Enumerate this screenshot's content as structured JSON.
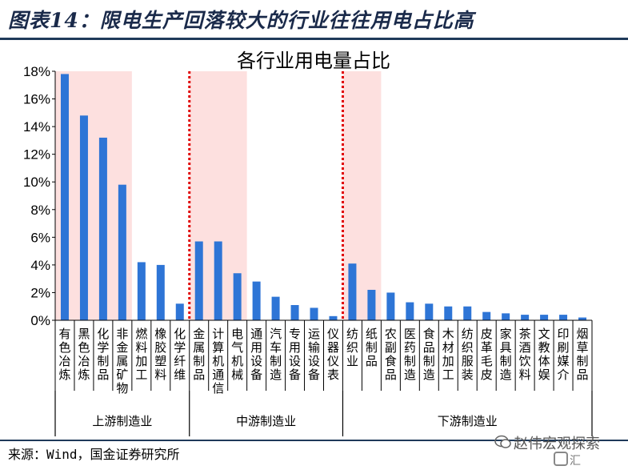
{
  "header": {
    "title": "图表14：限电生产回落较大的行业往往用电占比高"
  },
  "footer": {
    "source": "来源：Wind，国金证券研究所"
  },
  "watermark": {
    "line1": "赵伟宏观探索",
    "line2": "汇"
  },
  "colors": {
    "bar": "#2e75d6",
    "highlight": "#fde0df",
    "divider": "#e00000",
    "axis": "#000000"
  },
  "chart_data": {
    "type": "bar",
    "title": "各行业用电量占比",
    "ylim": [
      0,
      18
    ],
    "yticks": [
      "0%",
      "2%",
      "4%",
      "6%",
      "8%",
      "10%",
      "12%",
      "14%",
      "16%",
      "18%"
    ],
    "categories": [
      "有色冶炼",
      "黑色冶炼",
      "化学制品",
      "非金属矿物",
      "燃料加工",
      "橡胶塑料",
      "化学纤维",
      "金属制品",
      "计算机通信",
      "电气机械",
      "通用设备",
      "汽车制造",
      "专用设备",
      "运输设备",
      "仪器仪表",
      "纺织业",
      "纸制品",
      "农副食品",
      "医药制造",
      "食品制造",
      "木材加工",
      "纺织服装",
      "皮革毛皮",
      "家具制造",
      "茶酒饮料",
      "文教体娱",
      "印刷媒介",
      "烟草制品"
    ],
    "values": [
      17.8,
      14.8,
      13.2,
      9.8,
      4.2,
      4.0,
      1.2,
      5.7,
      5.7,
      3.4,
      2.8,
      1.7,
      1.1,
      0.9,
      0.3,
      4.1,
      2.2,
      2.0,
      1.3,
      1.2,
      1.0,
      1.0,
      0.6,
      0.5,
      0.4,
      0.4,
      0.4,
      0.2
    ],
    "groups": [
      {
        "name": "上游制造业",
        "start": 0,
        "end": 6,
        "highlight_count": 4
      },
      {
        "name": "中游制造业",
        "start": 7,
        "end": 14,
        "highlight_count": 3
      },
      {
        "name": "下游制造业",
        "start": 15,
        "end": 27,
        "highlight_count": 2
      }
    ]
  }
}
